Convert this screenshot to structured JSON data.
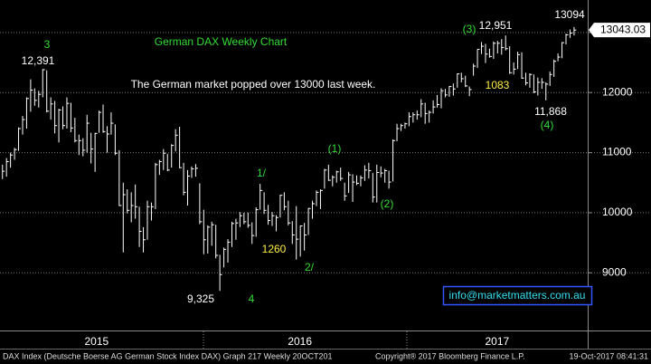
{
  "chart_data": {
    "type": "ohlc",
    "title": "German DAX Weekly Chart",
    "subtitle": "The German market popped over 13000 last week.",
    "last_value_label": "13043.03",
    "watermark": "info@marketmatters.com.au",
    "footer": [
      "DAX Index (Deutsche Boerse AG German Stock Index DAX) Graph 217  Weekly 20OCT201",
      "Copyright® 2017 Bloomberg Finance L.P.",
      "19-Oct-2017 08:41:31"
    ],
    "color": "#ffffff",
    "grid": true,
    "ylim": [
      8040,
      13540
    ],
    "yticks": [
      9000,
      10000,
      11000,
      12000,
      13000
    ],
    "xlim": [
      -0.5,
      145.5
    ],
    "xticks": [
      {
        "value": 23.5,
        "label": "2015"
      },
      {
        "value": 74,
        "label": "2016"
      },
      {
        "value": 123,
        "label": "2017"
      }
    ],
    "annotations": [
      {
        "text": "3",
        "color": "#33dd33"
      },
      {
        "text": "(3)",
        "color": "#33dd33"
      },
      {
        "text": "1/",
        "color": "#33dd33"
      },
      {
        "text": "(1)",
        "color": "#33dd33"
      },
      {
        "text": "(2)",
        "color": "#33dd33"
      },
      {
        "text": "2/",
        "color": "#33dd33"
      },
      {
        "text": "4",
        "color": "#33dd33"
      },
      {
        "text": "(4)",
        "color": "#33dd33"
      },
      {
        "text": "12,391",
        "color": "#ffffff"
      },
      {
        "text": "12,951",
        "color": "#ffffff"
      },
      {
        "text": "13094",
        "color": "#ffffff"
      },
      {
        "text": "11,868",
        "color": "#ffffff"
      },
      {
        "text": "9,325",
        "color": "#ffffff"
      },
      {
        "text": "1260",
        "color": "#ffee44"
      },
      {
        "text": "1083",
        "color": "#ffee44"
      }
    ],
    "high": [
      10800,
      10910,
      11000,
      11080,
      11420,
      11610,
      11920,
      12220,
      12070,
      12030,
      12390,
      12370,
      11920,
      11860,
      11730,
      11770,
      11920,
      11830,
      11580,
      11300,
      11240,
      11630,
      11330,
      11330,
      11700,
      11800,
      11440,
      11670,
      11470,
      11040,
      10500,
      10390,
      10340,
      10470,
      10100,
      9760,
      10200,
      10170,
      10830,
      10880,
      11060,
      10980,
      11140,
      11390,
      11430,
      10830,
      10710,
      10770,
      10810,
      10490,
      10050,
      9790,
      9850,
      9800,
      9300,
      9420,
      9560,
      9850,
      9900,
      10010,
      10000,
      10000,
      9840,
      10090,
      10480,
      10340,
      10130,
      10010,
      9960,
      10300,
      10340,
      10200,
      9860,
      10110,
      9790,
      9830,
      10080,
      10200,
      10370,
      10390,
      10730,
      10800,
      10620,
      10700,
      10750,
      10500,
      10680,
      10640,
      10620,
      10620,
      10790,
      10830,
      10660,
      10800,
      10770,
      10730,
      10700,
      11220,
      11480,
      11480,
      11500,
      11670,
      11670,
      11700,
      11890,
      11830,
      11700,
      11870,
      11960,
      12070,
      12060,
      12110,
      12150,
      12320,
      12330,
      12280,
      12100,
      12480,
      12720,
      12840,
      12810,
      12730,
      12850,
      12860,
      12890,
      12950,
      12770,
      12500,
      12680,
      12670,
      12330,
      12320,
      12300,
      12250,
      12240,
      12170,
      12350,
      12550,
      12650,
      12840,
      12980,
      13050,
      13090
    ],
    "low": [
      10560,
      10600,
      10750,
      10880,
      11030,
      11300,
      11400,
      11680,
      11780,
      11750,
      11920,
      11670,
      11550,
      11320,
      11170,
      11390,
      11400,
      11340,
      11170,
      10960,
      10940,
      11000,
      10820,
      10680,
      11330,
      11330,
      11000,
      11300,
      10960,
      10110,
      9340,
      9990,
      9840,
      9900,
      9430,
      9340,
      9550,
      9870,
      10060,
      10630,
      10710,
      10690,
      10750,
      11020,
      10740,
      10290,
      10120,
      10580,
      10600,
      9810,
      9310,
      9320,
      9450,
      9240,
      8700,
      9090,
      9170,
      9430,
      9550,
      9760,
      9810,
      9750,
      9480,
      9600,
      10050,
      9980,
      9800,
      9780,
      9690,
      9920,
      10040,
      9790,
      9480,
      9220,
      9270,
      9370,
      9630,
      9900,
      10110,
      10060,
      10400,
      10530,
      10440,
      10500,
      10530,
      10200,
      10330,
      10180,
      10460,
      10440,
      10530,
      10570,
      10170,
      10170,
      10590,
      10500,
      10400,
      10520,
      11190,
      11360,
      11400,
      11440,
      11500,
      11550,
      11590,
      11480,
      11500,
      11650,
      11750,
      11740,
      11920,
      11930,
      11950,
      12080,
      12170,
      12090,
      11940,
      12280,
      12410,
      12640,
      12490,
      12580,
      12560,
      12650,
      12630,
      12700,
      12310,
      12300,
      12390,
      12230,
      12120,
      12080,
      11990,
      11950,
      12060,
      11870,
      12110,
      12260,
      12520,
      12570,
      12800,
      12910,
      12950
    ],
    "close": [
      10690,
      10850,
      10960,
      11050,
      11400,
      11550,
      11900,
      12040,
      11870,
      11970,
      12380,
      11690,
      11810,
      11450,
      11710,
      11450,
      11820,
      11410,
      11200,
      11200,
      11040,
      11490,
      11060,
      11320,
      11670,
      11350,
      11310,
      11490,
      10990,
      10120,
      10300,
      10040,
      10120,
      10100,
      9690,
      9550,
      10100,
      10100,
      10800,
      10850,
      10990,
      10710,
      11120,
      11290,
      10750,
      10340,
      10610,
      10730,
      10740,
      9850,
      9550,
      9760,
      9800,
      9290,
      8970,
      9390,
      9510,
      9820,
      9830,
      9950,
      9850,
      9790,
      9620,
      10050,
      10370,
      10040,
      9870,
      9950,
      9920,
      10290,
      10100,
      9830,
      9630,
      9560,
      9780,
      9630,
      10070,
      10150,
      10340,
      10370,
      10710,
      10540,
      10590,
      10680,
      10570,
      10280,
      10630,
      10510,
      10490,
      10580,
      10710,
      10700,
      10260,
      10670,
      10660,
      10700,
      10510,
      11200,
      11400,
      11450,
      11480,
      11600,
      11630,
      11630,
      11810,
      11650,
      11670,
      11760,
      11800,
      12030,
      11960,
      12100,
      12060,
      12310,
      12230,
      12110,
      12050,
      12440,
      12720,
      12770,
      12640,
      12600,
      12820,
      12820,
      12750,
      12730,
      12330,
      12390,
      12630,
      12240,
      12160,
      12300,
      12010,
      12170,
      12170,
      12140,
      12300,
      12520,
      12590,
      12830,
      12960,
      12990,
      13040
    ]
  }
}
